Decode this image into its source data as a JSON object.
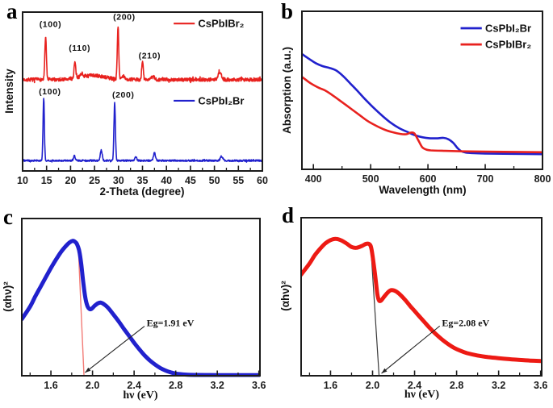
{
  "figure_title": "CsPbI2Br / CsPbIBr2 perovskite characterization figure",
  "chart_data": [
    {
      "panel_label": "a",
      "type": "line",
      "xlabel": "2-Theta (degree)",
      "ylabel": "Intensity",
      "xlim": [
        10,
        60
      ],
      "ylim": [
        0,
        1
      ],
      "xtick_values": [
        10,
        15,
        20,
        25,
        30,
        35,
        40,
        45,
        50,
        55,
        60
      ],
      "xtick_labels": [
        "10",
        "15",
        "20",
        "25",
        "30",
        "35",
        "40",
        "45",
        "50",
        "55",
        "60"
      ],
      "xminor_values": [
        12.5,
        17.5,
        22.5,
        27.5,
        32.5,
        37.5,
        42.5,
        47.5,
        52.5,
        57.5
      ],
      "series": [
        {
          "name": "CsPbIBr2",
          "display_label": "CsPbIBr₂",
          "color": "#e8211e",
          "line_width": 1.6,
          "baseline": 0.575,
          "noise": 0.011,
          "seed": 7,
          "peaks": [
            {
              "x": 14.8,
              "h": 0.265,
              "w": 0.16
            },
            {
              "x": 20.9,
              "h": 0.1,
              "w": 0.17
            },
            {
              "x": 22.3,
              "h": 0.022,
              "w": 0.25
            },
            {
              "x": 24.5,
              "h": 0.026,
              "w": 2.6
            },
            {
              "x": 29.9,
              "h": 0.335,
              "w": 0.15
            },
            {
              "x": 31.1,
              "h": 0.02,
              "w": 0.3
            },
            {
              "x": 35.0,
              "h": 0.115,
              "w": 0.16
            },
            {
              "x": 37.2,
              "h": 0.018,
              "w": 0.3
            },
            {
              "x": 51.1,
              "h": 0.045,
              "w": 0.34
            }
          ]
        },
        {
          "name": "CsPbI2Br",
          "display_label": "CsPbI₂Br",
          "color": "#2121cd",
          "line_width": 1.6,
          "baseline": 0.065,
          "noise": 0.005,
          "seed": 23,
          "peaks": [
            {
              "x": 14.4,
              "h": 0.395,
              "w": 0.14
            },
            {
              "x": 20.8,
              "h": 0.03,
              "w": 0.17
            },
            {
              "x": 26.4,
              "h": 0.065,
              "w": 0.2
            },
            {
              "x": 29.2,
              "h": 0.365,
              "w": 0.15
            },
            {
              "x": 33.6,
              "h": 0.025,
              "w": 0.2
            },
            {
              "x": 37.5,
              "h": 0.05,
              "w": 0.2
            },
            {
              "x": 51.5,
              "h": 0.027,
              "w": 0.26
            }
          ]
        }
      ],
      "peak_labels": [
        {
          "text": "(100)",
          "x": 15.8,
          "y": 0.925,
          "series": "CsPbIBr2"
        },
        {
          "text": "(110)",
          "x": 21.9,
          "y": 0.775,
          "series": "CsPbIBr2"
        },
        {
          "text": "(200)",
          "x": 31.2,
          "y": 0.97,
          "series": "CsPbIBr2"
        },
        {
          "text": "(210)",
          "x": 36.5,
          "y": 0.725,
          "series": "CsPbIBr2"
        },
        {
          "text": "(100)",
          "x": 15.7,
          "y": 0.5,
          "series": "CsPbI2Br"
        },
        {
          "text": "(200)",
          "x": 31.0,
          "y": 0.48,
          "series": "CsPbI2Br"
        }
      ],
      "legend": {
        "x_line_start": 41.5,
        "x_line_end": 45.9,
        "x_text": 46.6,
        "entries": [
          {
            "label": "CsPbIBr₂",
            "color": "#e8211e",
            "y": 0.928
          },
          {
            "label": "CsPbI₂Br",
            "color": "#2121cd",
            "y": 0.442
          }
        ]
      }
    },
    {
      "panel_label": "b",
      "type": "line",
      "xlabel": "Wavelength (nm)",
      "ylabel": "Absorption (a.u.)",
      "xlim": [
        380,
        800
      ],
      "ylim": [
        0,
        1
      ],
      "xtick_values": [
        400,
        500,
        600,
        700,
        800
      ],
      "xtick_labels": [
        "400",
        "500",
        "600",
        "700",
        "800"
      ],
      "xminor_values": [
        450,
        550,
        650,
        750
      ],
      "series": [
        {
          "name": "CsPbI2Br",
          "display_label": "CsPbI₂Br",
          "color": "#2121cd",
          "line_width": 2.6,
          "points": [
            [
              380,
              0.73
            ],
            [
              392,
              0.7
            ],
            [
              404,
              0.672
            ],
            [
              416,
              0.653
            ],
            [
              428,
              0.642
            ],
            [
              440,
              0.625
            ],
            [
              452,
              0.59
            ],
            [
              464,
              0.545
            ],
            [
              476,
              0.5
            ],
            [
              490,
              0.445
            ],
            [
              505,
              0.39
            ],
            [
              520,
              0.34
            ],
            [
              535,
              0.295
            ],
            [
              550,
              0.26
            ],
            [
              565,
              0.235
            ],
            [
              578,
              0.215
            ],
            [
              590,
              0.203
            ],
            [
              602,
              0.197
            ],
            [
              615,
              0.196
            ],
            [
              627,
              0.199
            ],
            [
              636,
              0.19
            ],
            [
              644,
              0.168
            ],
            [
              652,
              0.133
            ],
            [
              658,
              0.115
            ],
            [
              666,
              0.106
            ],
            [
              680,
              0.102
            ],
            [
              700,
              0.1
            ],
            [
              750,
              0.098
            ],
            [
              800,
              0.096
            ]
          ]
        },
        {
          "name": "CsPbIBr2",
          "display_label": "CsPbIBr₂",
          "color": "#e8211e",
          "line_width": 2.6,
          "points": [
            [
              380,
              0.585
            ],
            [
              395,
              0.545
            ],
            [
              410,
              0.515
            ],
            [
              420,
              0.5
            ],
            [
              435,
              0.465
            ],
            [
              450,
              0.425
            ],
            [
              465,
              0.385
            ],
            [
              480,
              0.345
            ],
            [
              495,
              0.305
            ],
            [
              510,
              0.275
            ],
            [
              525,
              0.25
            ],
            [
              540,
              0.233
            ],
            [
              552,
              0.224
            ],
            [
              562,
              0.222
            ],
            [
              570,
              0.232
            ],
            [
              576,
              0.228
            ],
            [
              583,
              0.185
            ],
            [
              590,
              0.14
            ],
            [
              597,
              0.125
            ],
            [
              605,
              0.12
            ],
            [
              630,
              0.117
            ],
            [
              660,
              0.114
            ],
            [
              700,
              0.112
            ],
            [
              750,
              0.11
            ],
            [
              800,
              0.108
            ]
          ]
        }
      ],
      "legend": {
        "x_line_start": 657,
        "x_line_end": 694,
        "x_text": 700,
        "entries": [
          {
            "label": "CsPbI₂Br",
            "color": "#2121cd",
            "y": 0.893
          },
          {
            "label": "CsPbIBr₂",
            "color": "#e8211e",
            "y": 0.79
          }
        ]
      }
    },
    {
      "panel_label": "c",
      "type": "line",
      "xlabel": "hν (eV)",
      "ylabel": "(αhν)²",
      "xlim": [
        1.32,
        3.61
      ],
      "ylim": [
        0,
        1
      ],
      "xtick_values": [
        1.6,
        2.0,
        2.4,
        2.8,
        3.2,
        3.6
      ],
      "xtick_labels": [
        "1.6",
        "2.0",
        "2.4",
        "2.8",
        "3.2",
        "3.6"
      ],
      "xminor_values": [
        1.4,
        1.8,
        2.2,
        2.6,
        3.0,
        3.4
      ],
      "series": [
        {
          "name": "CsPbI2Br",
          "display_label": "CsPbI₂Br",
          "color": "#2121cd",
          "line_width": 5,
          "points": [
            [
              1.32,
              0.36
            ],
            [
              1.4,
              0.44
            ],
            [
              1.45,
              0.505
            ],
            [
              1.5,
              0.565
            ],
            [
              1.55,
              0.625
            ],
            [
              1.6,
              0.685
            ],
            [
              1.65,
              0.74
            ],
            [
              1.7,
              0.79
            ],
            [
              1.74,
              0.822
            ],
            [
              1.78,
              0.848
            ],
            [
              1.81,
              0.858
            ],
            [
              1.83,
              0.853
            ],
            [
              1.85,
              0.838
            ],
            [
              1.87,
              0.8
            ],
            [
              1.89,
              0.72
            ],
            [
              1.91,
              0.6
            ],
            [
              1.93,
              0.5
            ],
            [
              1.95,
              0.445
            ],
            [
              1.97,
              0.425
            ],
            [
              1.99,
              0.425
            ],
            [
              2.02,
              0.445
            ],
            [
              2.05,
              0.46
            ],
            [
              2.08,
              0.465
            ],
            [
              2.11,
              0.455
            ],
            [
              2.15,
              0.432
            ],
            [
              2.2,
              0.39
            ],
            [
              2.25,
              0.347
            ],
            [
              2.3,
              0.3
            ],
            [
              2.35,
              0.255
            ],
            [
              2.4,
              0.21
            ],
            [
              2.45,
              0.168
            ],
            [
              2.5,
              0.13
            ],
            [
              2.55,
              0.098
            ],
            [
              2.6,
              0.072
            ],
            [
              2.65,
              0.05
            ],
            [
              2.7,
              0.034
            ],
            [
              2.75,
              0.022
            ],
            [
              2.8,
              0.014
            ],
            [
              2.9,
              0.007
            ],
            [
              3.0,
              0.005
            ],
            [
              3.2,
              0.004
            ],
            [
              3.4,
              0.004
            ],
            [
              3.6,
              0.004
            ]
          ]
        }
      ],
      "annotations": {
        "band_gap_ev": 1.91,
        "tangent": {
          "x1": 1.862,
          "y1": 0.84,
          "x2": 1.918,
          "y2": 0.0,
          "color": "#f27b76",
          "width": 1.4
        },
        "pointer": {
          "x1": 1.928,
          "y1": 0.02,
          "x2": 2.5,
          "y2": 0.315,
          "color": "#222222",
          "width": 1.1
        },
        "eg_label": {
          "text": "Eg=1.91 eV",
          "x": 2.52,
          "y": 0.335
        }
      }
    },
    {
      "panel_label": "d",
      "type": "line",
      "xlabel": "hν (eV)",
      "ylabel": "(αhν)²",
      "xlim": [
        1.32,
        3.61
      ],
      "ylim": [
        0,
        1
      ],
      "xtick_values": [
        1.6,
        2.0,
        2.4,
        2.8,
        3.2,
        3.6
      ],
      "xtick_labels": [
        "1.6",
        "2.0",
        "2.4",
        "2.8",
        "3.2",
        "3.6"
      ],
      "xminor_values": [
        1.4,
        1.8,
        2.2,
        2.6,
        3.0,
        3.4
      ],
      "series": [
        {
          "name": "CsPbIBr2",
          "display_label": "CsPbIBr₂",
          "color": "#ed1a14",
          "line_width": 5,
          "points": [
            [
              1.32,
              0.64
            ],
            [
              1.4,
              0.71
            ],
            [
              1.45,
              0.762
            ],
            [
              1.5,
              0.803
            ],
            [
              1.55,
              0.837
            ],
            [
              1.6,
              0.858
            ],
            [
              1.65,
              0.866
            ],
            [
              1.7,
              0.857
            ],
            [
              1.75,
              0.838
            ],
            [
              1.8,
              0.815
            ],
            [
              1.85,
              0.81
            ],
            [
              1.9,
              0.822
            ],
            [
              1.94,
              0.835
            ],
            [
              1.97,
              0.832
            ],
            [
              1.99,
              0.8
            ],
            [
              2.02,
              0.66
            ],
            [
              2.045,
              0.52
            ],
            [
              2.06,
              0.478
            ],
            [
              2.08,
              0.475
            ],
            [
              2.11,
              0.5
            ],
            [
              2.15,
              0.53
            ],
            [
              2.18,
              0.542
            ],
            [
              2.22,
              0.535
            ],
            [
              2.26,
              0.515
            ],
            [
              2.31,
              0.48
            ],
            [
              2.36,
              0.44
            ],
            [
              2.42,
              0.395
            ],
            [
              2.48,
              0.35
            ],
            [
              2.54,
              0.305
            ],
            [
              2.6,
              0.265
            ],
            [
              2.66,
              0.23
            ],
            [
              2.72,
              0.2
            ],
            [
              2.78,
              0.175
            ],
            [
              2.84,
              0.157
            ],
            [
              2.9,
              0.143
            ],
            [
              3.0,
              0.128
            ],
            [
              3.1,
              0.118
            ],
            [
              3.2,
              0.111
            ],
            [
              3.3,
              0.105
            ],
            [
              3.4,
              0.1
            ],
            [
              3.5,
              0.096
            ],
            [
              3.6,
              0.093
            ]
          ]
        }
      ],
      "annotations": {
        "band_gap_ev": 2.08,
        "tangent": {
          "x1": 1.985,
          "y1": 0.8,
          "x2": 2.062,
          "y2": 0.0,
          "color": "#3a3a3a",
          "width": 1.2
        },
        "pointer": {
          "x1": 2.085,
          "y1": 0.015,
          "x2": 2.64,
          "y2": 0.315,
          "color": "#222222",
          "width": 1.1
        },
        "eg_label": {
          "text": "Eg=2.08 eV",
          "x": 2.66,
          "y": 0.335
        }
      }
    }
  ]
}
